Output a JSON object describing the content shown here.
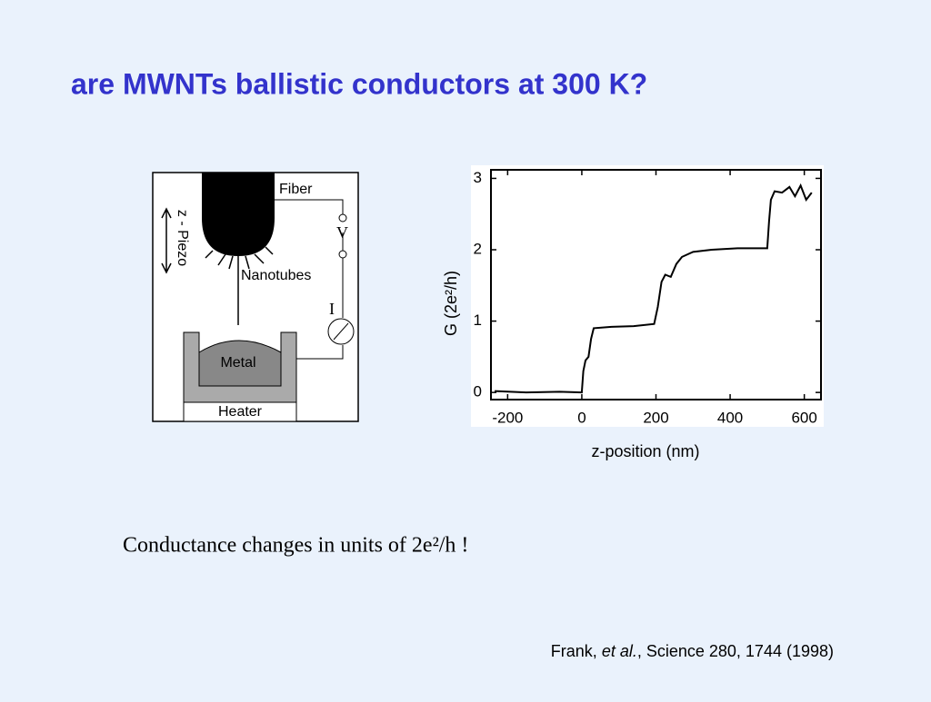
{
  "title": "are MWNTs ballistic conductors at 300 K?",
  "diagram": {
    "labels": [
      "Fiber",
      "V",
      "z - Piezo",
      "Nanotubes",
      "I",
      "Metal",
      "Heater"
    ]
  },
  "chart_data": {
    "type": "line",
    "color": "#000000",
    "x": [
      -235,
      -150,
      -60,
      0,
      4,
      10,
      18,
      25,
      32,
      80,
      140,
      195,
      205,
      215,
      225,
      240,
      255,
      270,
      300,
      350,
      420,
      500,
      505,
      510,
      520,
      540,
      560,
      575,
      590,
      605,
      620
    ],
    "values": [
      0.02,
      0.0,
      0.01,
      0.0,
      0.3,
      0.45,
      0.5,
      0.75,
      0.9,
      0.92,
      0.93,
      0.96,
      1.2,
      1.55,
      1.65,
      1.62,
      1.8,
      1.9,
      1.97,
      2.0,
      2.02,
      2.02,
      2.4,
      2.7,
      2.82,
      2.8,
      2.88,
      2.75,
      2.9,
      2.7,
      2.8
    ],
    "xlim": [
      -245,
      645
    ],
    "ylim": [
      -0.1,
      3.12
    ],
    "xticks": [
      -200,
      0,
      200,
      400,
      600
    ],
    "yticks": [
      0,
      1,
      2,
      3
    ],
    "ylabel": "G (2e²/h)",
    "xlabel": "z-position (nm)"
  },
  "caption": "Conductance changes in units of 2e²/h !",
  "citation": {
    "parts": [
      "Frank, ",
      "et al.",
      ", Science 280, 1744 (1998)"
    ]
  }
}
